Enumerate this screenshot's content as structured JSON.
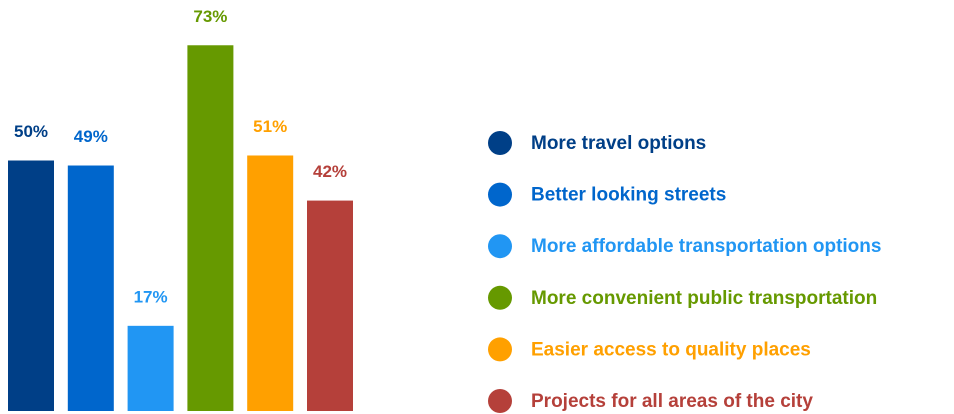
{
  "chart_data": {
    "type": "bar",
    "categories": [
      "More travel options",
      "Better looking streets",
      "More affordable transportation options",
      "More convenient public transportation",
      "Easier access to quality places",
      "Projects for all areas of the city"
    ],
    "values": [
      50,
      49,
      17,
      73,
      51,
      42
    ],
    "value_labels": [
      "50%",
      "49%",
      "17%",
      "73%",
      "51%",
      "42%"
    ],
    "colors": [
      "#003f87",
      "#0066cc",
      "#2196f3",
      "#669900",
      "#ffa000",
      "#b5403a"
    ]
  }
}
